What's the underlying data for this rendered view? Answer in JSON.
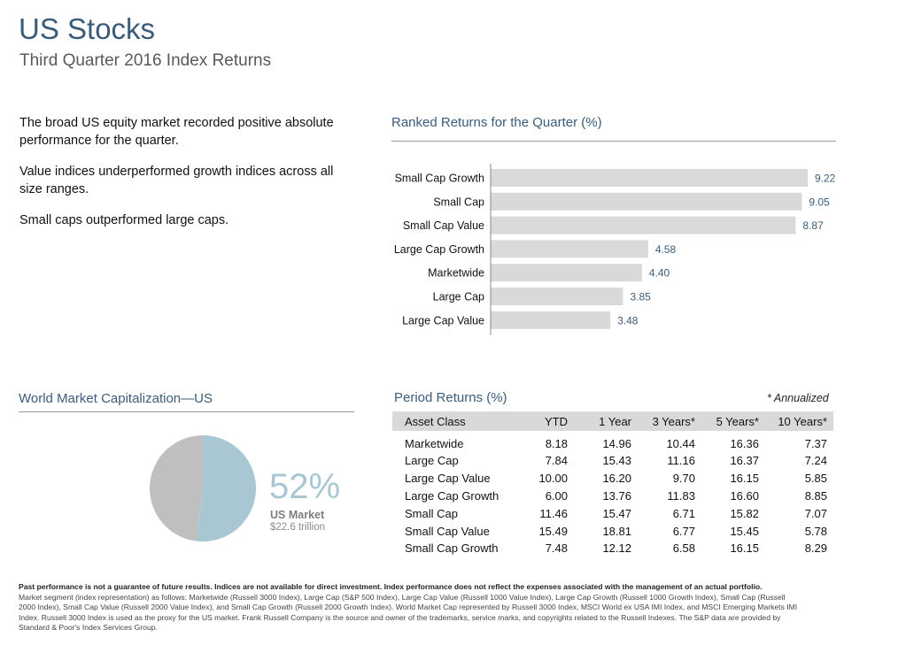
{
  "header": {
    "title": "US Stocks",
    "subtitle": "Third Quarter 2016 Index Returns"
  },
  "bullets": [
    "The broad US equity market recorded positive absolute performance for the quarter.",
    "Value indices underperformed growth indices across all size ranges.",
    "Small caps outperformed large caps."
  ],
  "ranked": {
    "title": "Ranked Returns for the Quarter (%)"
  },
  "chart_data": [
    {
      "type": "bar",
      "orientation": "horizontal",
      "title": "Ranked Returns for the Quarter (%)",
      "categories": [
        "Small Cap Growth",
        "Small Cap",
        "Small Cap Value",
        "Large Cap Growth",
        "Marketwide",
        "Large Cap",
        "Large Cap Value"
      ],
      "values": [
        9.22,
        9.05,
        8.87,
        4.58,
        4.4,
        3.85,
        3.48
      ],
      "value_labels": [
        "9.22",
        "9.05",
        "8.87",
        "4.58",
        "4.40",
        "3.85",
        "3.48"
      ],
      "xlim": [
        0,
        9.22
      ],
      "bar_color": "#d9d9d9",
      "label_color": "#3a5b7a"
    },
    {
      "type": "pie",
      "title": "World Market Capitalization—US",
      "slices": [
        {
          "name": "US Market",
          "value": 52,
          "color": "#a9c7d3"
        },
        {
          "name": "",
          "value": 48,
          "color": "#bfbfbf"
        }
      ]
    }
  ],
  "pie": {
    "title": "World Market Capitalization—US",
    "percent": "52%",
    "label": "US Market",
    "sublabel": "$22.6 trillion"
  },
  "period": {
    "title": "Period Returns (%)",
    "note": "* Annualized",
    "columns": [
      "Asset Class",
      "YTD",
      "1 Year",
      "3 Years*",
      "5 Years*",
      "10 Years*"
    ],
    "rows": [
      [
        "Marketwide",
        "8.18",
        "14.96",
        "10.44",
        "16.36",
        "7.37"
      ],
      [
        "Large Cap",
        "7.84",
        "15.43",
        "11.16",
        "16.37",
        "7.24"
      ],
      [
        "Large Cap Value",
        "10.00",
        "16.20",
        "9.70",
        "16.15",
        "5.85"
      ],
      [
        "Large Cap Growth",
        "6.00",
        "13.76",
        "11.83",
        "16.60",
        "8.85"
      ],
      [
        "Small Cap",
        "11.46",
        "15.47",
        "6.71",
        "15.82",
        "7.07"
      ],
      [
        "Small Cap Value",
        "15.49",
        "18.81",
        "6.77",
        "15.45",
        "5.78"
      ],
      [
        "Small Cap Growth",
        "7.48",
        "12.12",
        "6.58",
        "16.15",
        "8.29"
      ]
    ]
  },
  "footer": {
    "bold": "Past performance is not a guarantee of future results. Indices are not available for direct investment. Index performance does not reflect the expenses associated with the management of an actual portfolio.",
    "text": "Market segment (index representation) as follows: Marketwide (Russell 3000 Index), Large Cap (S&P 500 Index), Large Cap Value (Russell 1000 Value Index), Large Cap Growth (Russell 1000 Growth Index), Small Cap (Russell 2000 Index), Small Cap Value (Russell 2000 Value Index), and Small Cap Growth (Russell 2000 Growth Index). World Market Cap represented by Russell 3000 Index, MSCI World ex USA IMI Index, and MSCI Emerging Markets IMI Index. Russell 3000 Index is used as the proxy for the US market. Frank Russell Company is the source and owner of the trademarks, service marks, and copyrights related to the Russell Indexes. The S&P data are provided by Standard & Poor's Index Services Group."
  }
}
